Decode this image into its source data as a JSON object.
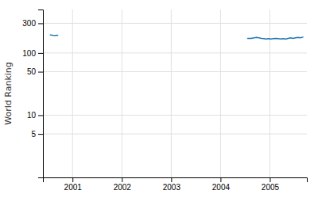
{
  "chart_data": {
    "type": "line",
    "ylabel": "World Ranking",
    "log": "y",
    "grid": true,
    "xlim": [
      2000.4,
      2005.75
    ],
    "ylim": [
      1,
      500
    ],
    "xticks": [
      2001,
      2002,
      2003,
      2004,
      2005
    ],
    "yticks": [
      5,
      10,
      50,
      100,
      300
    ],
    "series": [
      {
        "x": [
          2000.55,
          2000.6,
          2000.65,
          2000.7
        ],
        "values": [
          195,
          193,
          192,
          193
        ]
      },
      {
        "x": [
          2004.55,
          2004.62,
          2004.68,
          2004.73,
          2004.78,
          2004.83,
          2004.88,
          2004.92,
          2004.97,
          2005.02,
          2005.07,
          2005.12,
          2005.17,
          2005.22,
          2005.27,
          2005.32,
          2005.37,
          2005.42,
          2005.47,
          2005.52,
          2005.57,
          2005.62,
          2005.67
        ],
        "values": [
          172,
          172,
          175,
          178,
          175,
          172,
          170,
          168,
          170,
          168,
          170,
          172,
          170,
          168,
          170,
          168,
          172,
          175,
          172,
          175,
          178,
          175,
          180
        ]
      }
    ]
  }
}
